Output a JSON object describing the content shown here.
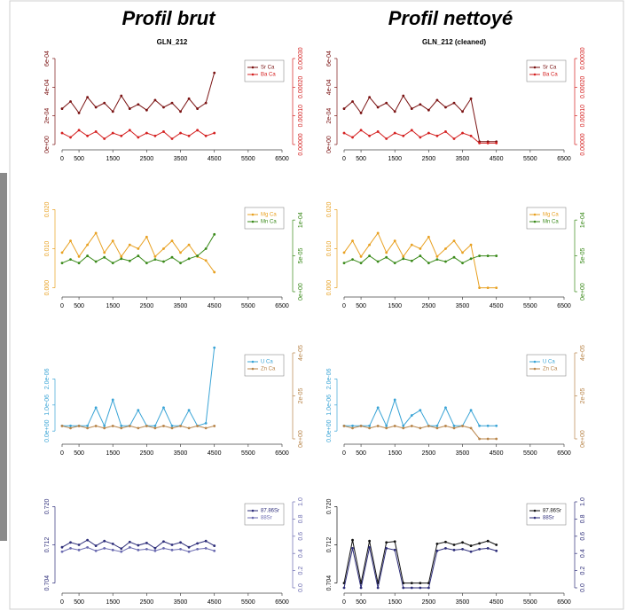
{
  "headers": [
    {
      "title": "Profil brut"
    },
    {
      "title": "Profil nettoyé"
    }
  ],
  "chart_data": [
    {
      "type": "line",
      "title": "GLN_212",
      "legend": "top-right",
      "x": [
        0,
        250,
        500,
        750,
        1000,
        1250,
        1500,
        1750,
        2000,
        2250,
        2500,
        2750,
        3000,
        3250,
        3500,
        3750,
        4000,
        4250,
        4500
      ],
      "xlim": [
        0,
        6500
      ],
      "xticks": [
        0,
        500,
        1500,
        2500,
        3500,
        4500,
        5500,
        6500
      ],
      "ylim": [
        0,
        0.0006
      ],
      "yticks": [
        {
          "value": 0,
          "label": "0e+00"
        },
        {
          "value": 0.0002,
          "label": "2e-04"
        },
        {
          "value": 0.0004,
          "label": "4e-04"
        },
        {
          "value": 0.0006,
          "label": "6e-04"
        }
      ],
      "y2lim": [
        0,
        0.0003
      ],
      "y2ticks": [
        {
          "value": 0,
          "label": "0.00000"
        },
        {
          "value": 0.0001,
          "label": "0.00010"
        },
        {
          "value": 0.0002,
          "label": "0.00020"
        },
        {
          "value": 0.0003,
          "label": "0.00030"
        }
      ],
      "series": [
        {
          "name": "Sr Ca",
          "color": "#7a1212",
          "values": [
            0.00025,
            0.0003,
            0.00022,
            0.00033,
            0.00026,
            0.00029,
            0.00023,
            0.00034,
            0.00025,
            0.00028,
            0.00024,
            0.00031,
            0.00026,
            0.00029,
            0.00023,
            0.00032,
            0.00025,
            0.00029,
            0.0005
          ]
        },
        {
          "name": "Ba Ca",
          "color": "#d42020",
          "axis": "y2",
          "values": [
            4e-05,
            2.5e-05,
            5e-05,
            3e-05,
            4.5e-05,
            2e-05,
            4e-05,
            3e-05,
            5e-05,
            2.5e-05,
            4e-05,
            3e-05,
            4.5e-05,
            2e-05,
            4e-05,
            3e-05,
            5e-05,
            3e-05,
            4e-05
          ]
        }
      ]
    },
    {
      "type": "line",
      "title": "GLN_212 (cleaned)",
      "legend": "top-right",
      "x": [
        0,
        250,
        500,
        750,
        1000,
        1250,
        1500,
        1750,
        2000,
        2250,
        2500,
        2750,
        3000,
        3250,
        3500,
        3750,
        4000,
        4250,
        4500
      ],
      "xlim": [
        0,
        6500
      ],
      "xticks": [
        0,
        500,
        1500,
        2500,
        3500,
        4500,
        5500,
        6500
      ],
      "ylim": [
        0,
        0.0006
      ],
      "yticks": [
        {
          "value": 0,
          "label": "0e+00"
        },
        {
          "value": 0.0002,
          "label": "2e-04"
        },
        {
          "value": 0.0004,
          "label": "4e-04"
        },
        {
          "value": 0.0006,
          "label": "6e-04"
        }
      ],
      "y2lim": [
        0,
        0.0003
      ],
      "y2ticks": [
        {
          "value": 0,
          "label": "0.00000"
        },
        {
          "value": 0.0001,
          "label": "0.00010"
        },
        {
          "value": 0.0002,
          "label": "0.00020"
        },
        {
          "value": 0.0003,
          "label": "0.00030"
        }
      ],
      "series": [
        {
          "name": "Sr Ca",
          "color": "#7a1212",
          "values": [
            0.00025,
            0.0003,
            0.00022,
            0.00033,
            0.00026,
            0.00029,
            0.00023,
            0.00034,
            0.00025,
            0.00028,
            0.00024,
            0.00031,
            0.00026,
            0.00029,
            0.00023,
            0.00032,
            2e-05,
            2e-05,
            2e-05
          ]
        },
        {
          "name": "Ba Ca",
          "color": "#d42020",
          "axis": "y2",
          "values": [
            4e-05,
            2.5e-05,
            5e-05,
            3e-05,
            4.5e-05,
            2e-05,
            4e-05,
            3e-05,
            5e-05,
            2.5e-05,
            4e-05,
            3e-05,
            4.5e-05,
            2e-05,
            4e-05,
            3e-05,
            5e-06,
            5e-06,
            5e-06
          ]
        }
      ]
    },
    {
      "type": "line",
      "legend": "top-right",
      "x": [
        0,
        250,
        500,
        750,
        1000,
        1250,
        1500,
        1750,
        2000,
        2250,
        2500,
        2750,
        3000,
        3250,
        3500,
        3750,
        4000,
        4250,
        4500
      ],
      "xlim": [
        0,
        6500
      ],
      "xticks": [
        0,
        500,
        1500,
        2500,
        3500,
        4500,
        5500,
        6500
      ],
      "ylim": [
        -0.001,
        0.021
      ],
      "yticks": [
        {
          "value": 0,
          "label": "0.000"
        },
        {
          "value": 0.01,
          "label": "0.010"
        },
        {
          "value": 0.02,
          "label": "0.020"
        }
      ],
      "y2lim": [
        0,
        0.00012
      ],
      "y2ticks": [
        {
          "value": 0,
          "label": "0e+00"
        },
        {
          "value": 5e-05,
          "label": "5e-05"
        },
        {
          "value": 0.0001,
          "label": "1e-04"
        }
      ],
      "series": [
        {
          "name": "Mg Ca",
          "color": "#e8a020",
          "values": [
            0.009,
            0.012,
            0.008,
            0.011,
            0.014,
            0.009,
            0.012,
            0.008,
            0.011,
            0.01,
            0.013,
            0.008,
            0.01,
            0.012,
            0.009,
            0.011,
            0.008,
            0.007,
            0.004
          ]
        },
        {
          "name": "Mn Ca",
          "color": "#3a8a1a",
          "axis": "y2",
          "values": [
            4e-05,
            4.5e-05,
            4e-05,
            5e-05,
            4.2e-05,
            4.8e-05,
            4e-05,
            4.6e-05,
            4.3e-05,
            5e-05,
            4e-05,
            4.5e-05,
            4.2e-05,
            4.8e-05,
            4e-05,
            4.6e-05,
            5e-05,
            6e-05,
            8e-05
          ]
        }
      ]
    },
    {
      "type": "line",
      "legend": "top-right",
      "x": [
        0,
        250,
        500,
        750,
        1000,
        1250,
        1500,
        1750,
        2000,
        2250,
        2500,
        2750,
        3000,
        3250,
        3500,
        3750,
        4000,
        4250,
        4500
      ],
      "xlim": [
        0,
        6500
      ],
      "xticks": [
        0,
        500,
        1500,
        2500,
        3500,
        4500,
        5500,
        6500
      ],
      "ylim": [
        -0.001,
        0.021
      ],
      "yticks": [
        {
          "value": 0,
          "label": "0.000"
        },
        {
          "value": 0.01,
          "label": "0.010"
        },
        {
          "value": 0.02,
          "label": "0.020"
        }
      ],
      "y2lim": [
        0,
        0.00012
      ],
      "y2ticks": [
        {
          "value": 0,
          "label": "0e+00"
        },
        {
          "value": 5e-05,
          "label": "5e-05"
        },
        {
          "value": 0.0001,
          "label": "1e-04"
        }
      ],
      "series": [
        {
          "name": "Mg Ca",
          "color": "#e8a020",
          "values": [
            0.009,
            0.012,
            0.008,
            0.011,
            0.014,
            0.009,
            0.012,
            0.008,
            0.011,
            0.01,
            0.013,
            0.008,
            0.01,
            0.012,
            0.009,
            0.011,
            0,
            0,
            0
          ]
        },
        {
          "name": "Mn Ca",
          "color": "#3a8a1a",
          "axis": "y2",
          "values": [
            4e-05,
            4.5e-05,
            4e-05,
            5e-05,
            4.2e-05,
            4.8e-05,
            4e-05,
            4.6e-05,
            4.3e-05,
            5e-05,
            4e-05,
            4.5e-05,
            4.2e-05,
            4.8e-05,
            4e-05,
            4.6e-05,
            5e-05,
            5e-05,
            5e-05
          ]
        }
      ]
    },
    {
      "type": "line",
      "legend": "top-right",
      "x": [
        0,
        250,
        500,
        750,
        1000,
        1250,
        1500,
        1750,
        2000,
        2250,
        2500,
        2750,
        3000,
        3250,
        3500,
        3750,
        4000,
        4250,
        4500
      ],
      "xlim": [
        0,
        6500
      ],
      "xticks": [
        0,
        500,
        1500,
        2500,
        3500,
        4500,
        5500,
        6500
      ],
      "ylim": [
        -3e-07,
        3e-06
      ],
      "yticks": [
        {
          "value": 0,
          "label": "0.0e+00"
        },
        {
          "value": 1e-06,
          "label": "1.0e-06"
        },
        {
          "value": 2e-06,
          "label": "2.0e-06"
        }
      ],
      "y2lim": [
        0,
        4e-05
      ],
      "y2ticks": [
        {
          "value": 0,
          "label": "0e+00"
        },
        {
          "value": 2e-05,
          "label": "2e-05"
        },
        {
          "value": 4e-05,
          "label": "4e-05"
        }
      ],
      "series": [
        {
          "name": "U Ca",
          "color": "#3aa4d6",
          "values": [
            2e-07,
            2e-07,
            2e-07,
            2e-07,
            9e-07,
            2e-07,
            1.2e-06,
            2e-07,
            2e-07,
            8e-07,
            2e-07,
            2e-07,
            9e-07,
            2e-07,
            2e-07,
            8e-07,
            2e-07,
            3e-07,
            3.2e-06
          ]
        },
        {
          "name": "Zn Ca",
          "color": "#b8854a",
          "axis": "y2",
          "values": [
            6e-06,
            5e-06,
            6e-06,
            5e-06,
            6e-06,
            5e-06,
            6e-06,
            5e-06,
            6e-06,
            5e-06,
            6e-06,
            5e-06,
            6e-06,
            5e-06,
            6e-06,
            5e-06,
            6e-06,
            5e-06,
            6e-06
          ]
        }
      ]
    },
    {
      "type": "line",
      "legend": "top-right",
      "x": [
        0,
        250,
        500,
        750,
        1000,
        1250,
        1500,
        1750,
        2000,
        2250,
        2500,
        2750,
        3000,
        3250,
        3500,
        3750,
        4000,
        4250,
        4500
      ],
      "xlim": [
        0,
        6500
      ],
      "xticks": [
        0,
        500,
        1500,
        2500,
        3500,
        4500,
        5500,
        6500
      ],
      "ylim": [
        -3e-07,
        3e-06
      ],
      "yticks": [
        {
          "value": 0,
          "label": "0.0e+00"
        },
        {
          "value": 1e-06,
          "label": "1.0e-06"
        },
        {
          "value": 2e-06,
          "label": "2.0e-06"
        }
      ],
      "y2lim": [
        0,
        4e-05
      ],
      "y2ticks": [
        {
          "value": 0,
          "label": "0e+00"
        },
        {
          "value": 2e-05,
          "label": "2e-05"
        },
        {
          "value": 4e-05,
          "label": "4e-05"
        }
      ],
      "series": [
        {
          "name": "U Ca",
          "color": "#3aa4d6",
          "values": [
            2e-07,
            2e-07,
            2e-07,
            2e-07,
            9e-07,
            2e-07,
            1.2e-06,
            2e-07,
            6e-07,
            8e-07,
            2e-07,
            2e-07,
            9e-07,
            2e-07,
            2e-07,
            8e-07,
            2e-07,
            2e-07,
            2e-07
          ]
        },
        {
          "name": "Zn Ca",
          "color": "#b8854a",
          "axis": "y2",
          "values": [
            6e-06,
            5e-06,
            6e-06,
            5e-06,
            6e-06,
            5e-06,
            6e-06,
            5e-06,
            6e-06,
            5e-06,
            6e-06,
            5e-06,
            6e-06,
            5e-06,
            6e-06,
            5e-06,
            0,
            0,
            0
          ]
        }
      ]
    },
    {
      "type": "line",
      "legend": "top-right",
      "x": [
        0,
        250,
        500,
        750,
        1000,
        1250,
        1500,
        1750,
        2000,
        2250,
        2500,
        2750,
        3000,
        3250,
        3500,
        3750,
        4000,
        4250,
        4500
      ],
      "xlim": [
        0,
        6500
      ],
      "xticks": [
        0,
        500,
        1500,
        2500,
        3500,
        4500,
        5500,
        6500
      ],
      "ylim": [
        0.703,
        0.721
      ],
      "yticks": [
        0.704,
        0.712,
        {
          "value": 0.72,
          "label": "0.720"
        }
      ],
      "y2lim": [
        0,
        1
      ],
      "y2ticks": [
        {
          "value": 0,
          "label": "0.0"
        },
        0.2,
        0.4,
        0.6,
        0.8,
        {
          "value": 1,
          "label": "1.0"
        }
      ],
      "series": [
        {
          "name": "87.86Sr",
          "color": "#2e2e7a",
          "values": [
            0.7115,
            0.7125,
            0.712,
            0.713,
            0.7118,
            0.7128,
            0.7122,
            0.7112,
            0.7126,
            0.7119,
            0.7124,
            0.7113,
            0.7127,
            0.712,
            0.7125,
            0.7115,
            0.7123,
            0.7128,
            0.7118
          ]
        },
        {
          "name": "88Sr",
          "color": "#6a6ab0",
          "axis": "y2",
          "values": [
            0.42,
            0.46,
            0.44,
            0.47,
            0.43,
            0.46,
            0.44,
            0.42,
            0.47,
            0.44,
            0.45,
            0.43,
            0.46,
            0.44,
            0.45,
            0.42,
            0.45,
            0.46,
            0.43
          ]
        }
      ]
    },
    {
      "type": "line",
      "legend": "top-right",
      "x": [
        0,
        250,
        500,
        750,
        1000,
        1250,
        1500,
        1750,
        2000,
        2250,
        2500,
        2750,
        3000,
        3250,
        3500,
        3750,
        4000,
        4250,
        4500
      ],
      "xlim": [
        0,
        6500
      ],
      "xticks": [
        0,
        500,
        1500,
        2500,
        3500,
        4500,
        5500,
        6500
      ],
      "ylim": [
        0.703,
        0.721
      ],
      "yticks": [
        0.704,
        0.712,
        {
          "value": 0.72,
          "label": "0.720"
        }
      ],
      "y2lim": [
        0,
        1
      ],
      "y2ticks": [
        {
          "value": 0,
          "label": "0.0"
        },
        0.2,
        0.4,
        0.6,
        0.8,
        {
          "value": 1,
          "label": "1.0"
        }
      ],
      "series": [
        {
          "name": "87.86Sr",
          "color": "#111111",
          "values": [
            0.704,
            0.713,
            0.704,
            0.7128,
            0.704,
            0.7125,
            0.7127,
            0.704,
            0.704,
            0.704,
            0.704,
            0.7122,
            0.7126,
            0.712,
            0.7125,
            0.7118,
            0.7123,
            0.7128,
            0.712
          ]
        },
        {
          "name": "88Sr",
          "color": "#2e2e7a",
          "axis": "y2",
          "values": [
            0,
            0.46,
            0,
            0.47,
            0,
            0.46,
            0.44,
            0,
            0,
            0,
            0,
            0.43,
            0.46,
            0.44,
            0.45,
            0.42,
            0.45,
            0.46,
            0.43
          ]
        }
      ]
    }
  ]
}
